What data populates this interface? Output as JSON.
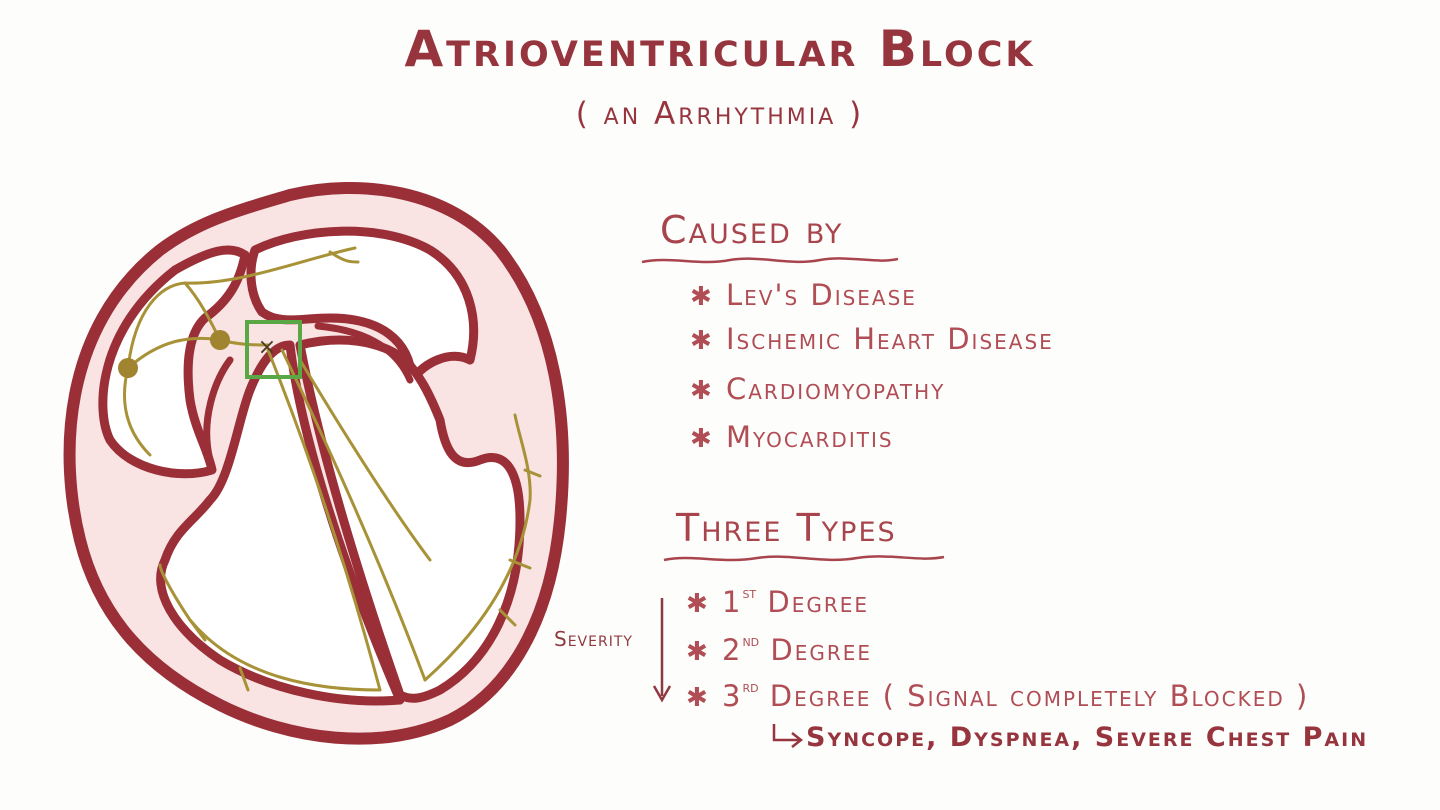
{
  "title": "Atrioventricular Block",
  "subtitle": "( an Arrhythmia )",
  "caused_by": {
    "heading": "Caused by",
    "items": [
      "Lev's Disease",
      "Ischemic Heart Disease",
      "Cardiomyopathy",
      "Myocarditis"
    ]
  },
  "three_types": {
    "heading": "Three Types",
    "severity_label": "Severity",
    "items": [
      {
        "num": "1",
        "sup": "st",
        "label": "Degree"
      },
      {
        "num": "2",
        "sup": "nd",
        "label": "Degree"
      },
      {
        "num": "3",
        "sup": "rd",
        "label": "Degree ( Signal completely Blocked )"
      }
    ],
    "sequelae": "Syncope, Dyspnea, Severe Chest Pain"
  },
  "diagram": {
    "block_marker": "×"
  },
  "colors": {
    "outline": "#9a2f37",
    "muscle_fill": "#f9e3e3",
    "conduction": "#a89237",
    "node": "#a08430",
    "highlight_box": "#5aa845",
    "text": "#a8444b"
  }
}
